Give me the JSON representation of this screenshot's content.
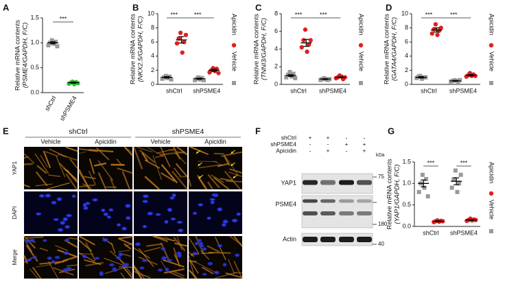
{
  "chart_data": [
    {
      "type": "dot",
      "panel": "A",
      "ylabel": [
        "Relative mRNA contents",
        "(PSME4/GAPDH, F/C)"
      ],
      "categories": [
        "shCtrl",
        "shPSME4"
      ],
      "values": [
        1.0,
        0.2
      ],
      "errors": [
        0.02,
        0.01
      ],
      "points": [
        [
          0.95,
          1.0,
          1.05,
          0.98,
          1.02,
          0.93
        ],
        [
          0.18,
          0.2,
          0.22,
          0.17,
          0.21,
          0.19
        ]
      ],
      "colors": [
        "#999999",
        "#22c02a"
      ],
      "markers": [
        "square",
        "circle"
      ],
      "ylim": [
        0,
        1.5
      ],
      "yticks": [
        {
          "value": 0,
          "label": "0.0"
        },
        {
          "value": 0.5,
          "label": "0.5"
        },
        {
          "value": 1,
          "label": "1.0"
        },
        {
          "value": 1.5,
          "label": "1.5"
        }
      ],
      "annotations": [
        "***"
      ]
    },
    {
      "type": "dot",
      "panel": "B",
      "ylabel": [
        "Relative mRNA contents",
        "(NKX2.5/GAPDH, F/C)"
      ],
      "categories": [
        "shCtrl",
        "shPSME4"
      ],
      "series": [
        {
          "name": "Vehicle",
          "color": "#999999",
          "marker": "square",
          "values": [
            1.0,
            0.8
          ],
          "errors": [
            0.1,
            0.08
          ],
          "points": [
            [
              0.8,
              1.0,
              1.2,
              0.9,
              1.1,
              0.7
            ],
            [
              0.6,
              0.8,
              1.0,
              0.7,
              0.9,
              0.6
            ]
          ]
        },
        {
          "name": "Apicidin",
          "color": "#e02020",
          "marker": "circle",
          "values": [
            6.3,
            2.0
          ],
          "errors": [
            0.45,
            0.15
          ],
          "points": [
            [
              5.8,
              6.5,
              7.3,
              4.5,
              6.0,
              7.0
            ],
            [
              1.7,
              2.0,
              2.3,
              1.9,
              2.2,
              1.6
            ]
          ]
        }
      ],
      "ylim": [
        0,
        10
      ],
      "yticks": [
        0,
        2,
        4,
        6,
        8,
        10
      ],
      "annotations": [
        "***",
        "***"
      ]
    },
    {
      "type": "dot",
      "panel": "C",
      "ylabel": [
        "Relative mRNA contents",
        "(TNNI3/GAPDH, F/C)"
      ],
      "categories": [
        "shCtrl",
        "shPSME4"
      ],
      "series": [
        {
          "name": "Vehicle",
          "color": "#999999",
          "marker": "square",
          "values": [
            1.0,
            0.6
          ],
          "errors": [
            0.1,
            0.05
          ],
          "points": [
            [
              0.8,
              1.1,
              1.4,
              0.9,
              1.2,
              0.7
            ],
            [
              0.5,
              0.6,
              0.7,
              0.6,
              0.5,
              0.6
            ]
          ]
        },
        {
          "name": "Apicidin",
          "color": "#e02020",
          "marker": "circle",
          "values": [
            4.7,
            0.8
          ],
          "errors": [
            0.4,
            0.05
          ],
          "points": [
            [
              4.2,
              5.0,
              6.2,
              3.7,
              4.5,
              5.0
            ],
            [
              0.7,
              0.8,
              1.0,
              0.9,
              0.6,
              0.8
            ]
          ]
        }
      ],
      "ylim": [
        0,
        8
      ],
      "yticks": [
        0,
        2,
        4,
        6,
        8
      ],
      "annotations": [
        "***",
        "***"
      ]
    },
    {
      "type": "dot",
      "panel": "D",
      "ylabel": [
        "Relative mRNA contents",
        "(GATA4/GAPDH, F/C)"
      ],
      "categories": [
        "shCtrl",
        "shPSME4"
      ],
      "series": [
        {
          "name": "Vehicle",
          "color": "#999999",
          "marker": "square",
          "values": [
            1.0,
            0.5
          ],
          "errors": [
            0.1,
            0.05
          ],
          "points": [
            [
              0.9,
              1.1,
              1.2,
              0.8,
              1.0,
              1.0
            ],
            [
              0.4,
              0.5,
              0.6,
              0.5,
              0.4,
              0.6
            ]
          ]
        },
        {
          "name": "Apicidin",
          "color": "#e02020",
          "marker": "circle",
          "values": [
            7.7,
            1.3
          ],
          "errors": [
            0.3,
            0.1
          ],
          "points": [
            [
              7.2,
              7.8,
              8.5,
              7.0,
              7.6,
              8.0
            ],
            [
              1.1,
              1.3,
              1.6,
              1.2,
              1.4,
              1.2
            ]
          ]
        }
      ],
      "ylim": [
        0,
        10
      ],
      "yticks": [
        0,
        2,
        4,
        6,
        8,
        10
      ],
      "annotations": [
        "***",
        "***"
      ]
    },
    {
      "type": "dot",
      "panel": "G",
      "ylabel": [
        "Relative mRNA contents",
        "(YAP1/GAPDH, F/C)"
      ],
      "categories": [
        "shCtrl",
        "shPSME4"
      ],
      "series": [
        {
          "name": "Vehicle",
          "color": "#999999",
          "marker": "square",
          "values": [
            1.0,
            1.05
          ],
          "errors": [
            0.08,
            0.08
          ],
          "points": [
            [
              0.8,
              1.0,
              1.2,
              0.9,
              1.1,
              0.7
            ],
            [
              0.9,
              1.1,
              1.3,
              0.8,
              1.0,
              1.2
            ]
          ]
        },
        {
          "name": "Apicidin",
          "color": "#e02020",
          "marker": "circle",
          "values": [
            0.12,
            0.15
          ],
          "errors": [
            0.01,
            0.01
          ],
          "points": [
            [
              0.1,
              0.12,
              0.14,
              0.11,
              0.13,
              0.12
            ],
            [
              0.13,
              0.15,
              0.18,
              0.14,
              0.16,
              0.15
            ]
          ]
        }
      ],
      "ylim": [
        0,
        1.5
      ],
      "yticks": [
        {
          "value": 0,
          "label": "0.0"
        },
        {
          "value": 0.5,
          "label": "0.5"
        },
        {
          "value": 1,
          "label": "1.0"
        },
        {
          "value": 1.5,
          "label": "1.5"
        }
      ],
      "annotations": [
        "***",
        "***"
      ]
    }
  ],
  "microscopy": {
    "panel": "E",
    "groups": [
      "shCtrl",
      "shPSME4"
    ],
    "conditions": [
      "Vehicle",
      "Apicidin",
      "Vehicle",
      "Apicidin"
    ],
    "rows": [
      "YAP1",
      "DAPI",
      "Merge"
    ]
  },
  "blot": {
    "panel": "F",
    "conditions": [
      {
        "label": "shCtrl",
        "signs": [
          "+",
          "+",
          "-",
          "-"
        ]
      },
      {
        "label": "shPSME4",
        "signs": [
          "-",
          "-",
          "+",
          "+"
        ]
      },
      {
        "label": "Apicidin",
        "signs": [
          "-",
          "+",
          "-",
          "+"
        ]
      }
    ],
    "unit": "kDa",
    "bands": [
      "YAP1",
      "PSME4",
      "Actin"
    ],
    "markers": [
      75,
      180,
      40
    ]
  }
}
